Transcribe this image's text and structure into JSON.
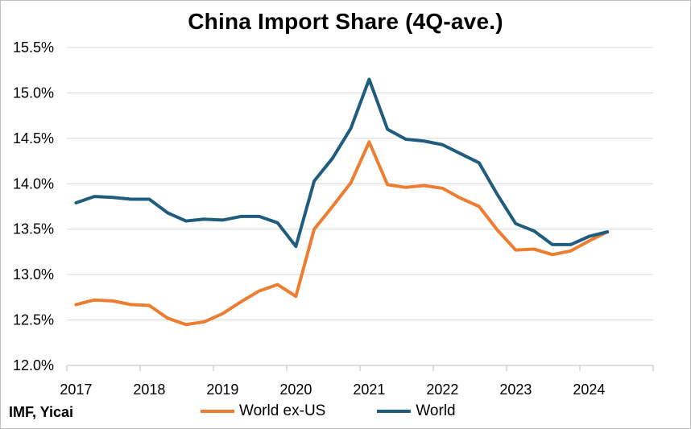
{
  "title": "China Import Share (4Q-ave.)",
  "source_note": "IMF, Yicai",
  "chart_data": {
    "type": "line",
    "title": "China Import Share (4Q-ave.)",
    "xlabel": "",
    "ylabel": "",
    "ylim": [
      12.0,
      15.5
    ],
    "yticks": [
      "12.0%",
      "12.5%",
      "13.0%",
      "13.5%",
      "14.0%",
      "14.5%",
      "15.0%",
      "15.5%"
    ],
    "ytick_values": [
      12.0,
      12.5,
      13.0,
      13.5,
      14.0,
      14.5,
      15.0,
      15.5
    ],
    "xticks": [
      "2017",
      "2018",
      "2019",
      "2020",
      "2021",
      "2022",
      "2023",
      "2024"
    ],
    "x": [
      "2017Q1",
      "2017Q2",
      "2017Q3",
      "2017Q4",
      "2018Q1",
      "2018Q2",
      "2018Q3",
      "2018Q4",
      "2019Q1",
      "2019Q2",
      "2019Q3",
      "2019Q4",
      "2020Q1",
      "2020Q2",
      "2020Q3",
      "2020Q4",
      "2021Q1",
      "2021Q2",
      "2021Q3",
      "2021Q4",
      "2022Q1",
      "2022Q2",
      "2022Q3",
      "2022Q4",
      "2023Q1",
      "2023Q2",
      "2023Q3",
      "2023Q4",
      "2024Q1",
      "2024Q2"
    ],
    "grid": true,
    "legend_position": "bottom",
    "series": [
      {
        "name": "World ex-US",
        "color": "#ED7D31",
        "values": [
          12.67,
          12.72,
          12.71,
          12.67,
          12.66,
          12.52,
          12.45,
          12.48,
          12.57,
          12.7,
          12.82,
          12.89,
          12.76,
          13.5,
          13.75,
          14.01,
          14.46,
          13.99,
          13.96,
          13.98,
          13.95,
          13.84,
          13.75,
          13.49,
          13.27,
          13.28,
          13.22,
          13.26,
          13.37,
          13.47
        ]
      },
      {
        "name": "World",
        "color": "#1F5C7E",
        "values": [
          13.79,
          13.86,
          13.85,
          13.83,
          13.83,
          13.68,
          13.59,
          13.61,
          13.6,
          13.64,
          13.64,
          13.57,
          13.31,
          14.03,
          14.28,
          14.61,
          15.15,
          14.6,
          14.49,
          14.47,
          14.43,
          14.33,
          14.23,
          13.88,
          13.56,
          13.48,
          13.33,
          13.33,
          13.42,
          13.47
        ]
      }
    ]
  }
}
